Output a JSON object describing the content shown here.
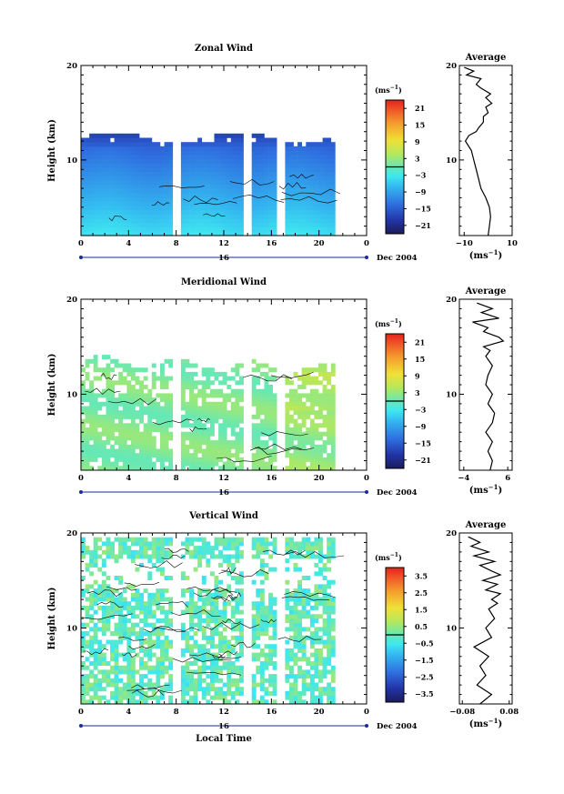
{
  "chart_data": [
    {
      "type": "heatmap",
      "title": "Zonal Wind",
      "ylabel": "Height (km)",
      "xlabel": "",
      "x_ticks": [
        "0",
        "4",
        "8",
        "12",
        "16",
        "20",
        "0"
      ],
      "y_ticks": [
        "10",
        "20"
      ],
      "xlim": [
        0,
        24
      ],
      "ylim": [
        2,
        20
      ],
      "date_day": "16",
      "date_label": "Dec 2004",
      "colorbar": {
        "unit": "(ms",
        "unit_sup": "−1",
        "unit_close": ")",
        "range": [
          -24,
          24
        ],
        "ticks": [
          "21",
          "15",
          "9",
          "3",
          "−3",
          "−9",
          "−15",
          "−21"
        ]
      },
      "missing_time_gaps_hours": [
        [
          7.8,
          8.3
        ],
        [
          13.7,
          14.2
        ],
        [
          16.6,
          17.0
        ]
      ],
      "data_time_range_hours": [
        0,
        21.2
      ],
      "average_profile": {
        "title": "Average",
        "xlabel": "(ms",
        "xlabel_sup": "−1",
        "xlabel_close": ")",
        "x_ticks": [
          "−10",
          "10"
        ],
        "xlim": [
          -12,
          10
        ],
        "y_ticks": [
          "10",
          "20"
        ],
        "heights_km": [
          2.0,
          3.0,
          4.0,
          5.0,
          6.0,
          7.0,
          8.0,
          9.0,
          10.0,
          11.0,
          12.0,
          12.6,
          13.0,
          13.4,
          14.0,
          14.6,
          15.0,
          15.6,
          16.0,
          16.6,
          17.0,
          17.6,
          18.0,
          18.6,
          19.0,
          19.4,
          19.8
        ],
        "values": [
          0.0,
          0.5,
          1.0,
          0.5,
          -1.0,
          -3.0,
          -4.0,
          -5.0,
          -6.0,
          -7.0,
          -9.5,
          -8.0,
          -5.0,
          -4.0,
          -2.0,
          -2.0,
          0.0,
          -1.0,
          1.5,
          -1.0,
          1.0,
          -3.0,
          -5.0,
          -3.0,
          -9.0,
          -6.0,
          -10.0
        ]
      }
    },
    {
      "type": "heatmap",
      "title": "Meridional Wind",
      "ylabel": "Height (km)",
      "xlabel": "",
      "x_ticks": [
        "0",
        "4",
        "8",
        "12",
        "16",
        "20",
        "0"
      ],
      "y_ticks": [
        "10",
        "20"
      ],
      "xlim": [
        0,
        24
      ],
      "ylim": [
        2,
        20
      ],
      "date_day": "16",
      "date_label": "Dec 2004",
      "colorbar": {
        "unit": "(ms",
        "unit_sup": "−1",
        "unit_close": ")",
        "range": [
          -24,
          24
        ],
        "ticks": [
          "21",
          "15",
          "9",
          "3",
          "−3",
          "−9",
          "−15",
          "−21"
        ]
      },
      "missing_time_gaps_hours": [
        [
          7.8,
          8.3
        ],
        [
          13.7,
          14.2
        ],
        [
          16.6,
          17.0
        ]
      ],
      "data_time_range_hours": [
        0,
        21.2
      ],
      "average_profile": {
        "title": "Average",
        "xlabel": "(ms",
        "xlabel_sup": "−1",
        "xlabel_close": ")",
        "x_ticks": [
          "−4",
          "6"
        ],
        "xlim": [
          -5,
          7
        ],
        "y_ticks": [
          "10",
          "20"
        ],
        "heights_km": [
          2.0,
          3.0,
          4.0,
          5.0,
          6.0,
          7.0,
          8.0,
          9.0,
          10.0,
          11.0,
          12.0,
          13.0,
          14.0,
          14.6,
          15.0,
          15.6,
          16.0,
          16.6,
          17.0,
          17.6,
          18.0,
          18.6,
          19.0,
          19.6
        ],
        "values": [
          2.0,
          2.5,
          1.5,
          2.5,
          1.0,
          2.5,
          3.0,
          1.5,
          2.5,
          1.0,
          1.5,
          2.5,
          1.0,
          2.0,
          0.5,
          5.0,
          4.0,
          0.5,
          1.5,
          -2.0,
          4.0,
          0.0,
          2.5,
          -1.0
        ]
      }
    },
    {
      "type": "heatmap",
      "title": "Vertical Wind",
      "ylabel": "Height (km)",
      "xlabel": "Local Time",
      "x_ticks": [
        "0",
        "4",
        "8",
        "12",
        "16",
        "20",
        "0"
      ],
      "y_ticks": [
        "10",
        "20"
      ],
      "xlim": [
        0,
        24
      ],
      "ylim": [
        2,
        20
      ],
      "date_day": "16",
      "date_label": "Dec 2004",
      "colorbar": {
        "unit": "(ms",
        "unit_sup": "−1",
        "unit_close": ")",
        "range": [
          -4,
          4
        ],
        "ticks": [
          "3.5",
          "2.5",
          "1.5",
          "0.5",
          "−0.5",
          "−1.5",
          "−2.5",
          "−3.5"
        ]
      },
      "missing_time_gaps_hours": [
        [
          7.8,
          8.3
        ],
        [
          13.7,
          14.2
        ],
        [
          16.6,
          17.0
        ]
      ],
      "data_time_range_hours": [
        0,
        21.2
      ],
      "average_profile": {
        "title": "Average",
        "xlabel": "(ms",
        "xlabel_sup": "−1",
        "xlabel_close": ")",
        "x_ticks": [
          "−0.08",
          "0.08"
        ],
        "xlim": [
          -0.09,
          0.09
        ],
        "y_ticks": [
          "10",
          "20"
        ],
        "heights_km": [
          2.0,
          3.0,
          4.0,
          5.0,
          6.0,
          7.0,
          8.0,
          9.0,
          10.0,
          11.0,
          12.0,
          12.6,
          13.0,
          13.6,
          14.0,
          14.6,
          15.0,
          15.6,
          16.0,
          16.6,
          17.0,
          17.6,
          18.0,
          18.6,
          19.0,
          19.6
        ],
        "values": [
          -0.02,
          0.02,
          -0.03,
          0.0,
          -0.02,
          0.01,
          -0.04,
          0.02,
          0.0,
          0.03,
          0.01,
          0.04,
          0.02,
          0.05,
          0.0,
          0.04,
          -0.01,
          0.05,
          0.02,
          -0.02,
          0.03,
          -0.04,
          0.01,
          -0.05,
          -0.02,
          -0.06
        ]
      }
    }
  ]
}
